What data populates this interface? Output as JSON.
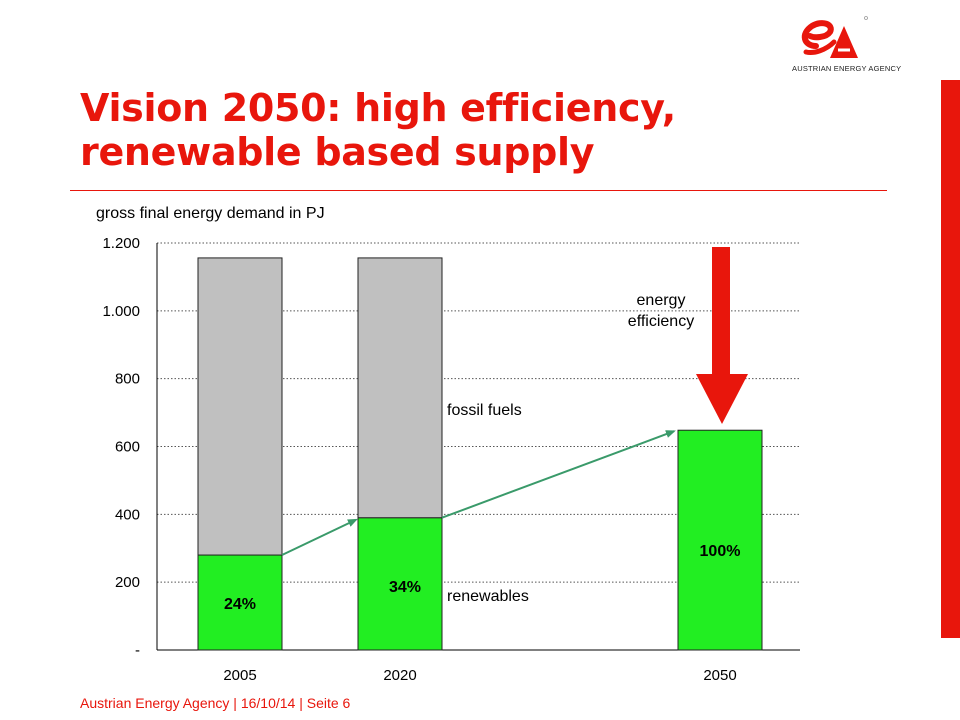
{
  "slide": {
    "title_line1": "Vision 2050: high efficiency,",
    "title_line2": "renewable based supply",
    "logo_text": "AUSTRIAN ENERGY AGENCY",
    "footer": "Austrian Energy Agency  | 16/10/14 | Seite 6"
  },
  "colors": {
    "accent": "#e8160c",
    "renewables": "#22ee22",
    "fossil": "#c0c0c0",
    "trend_arrow": "#3a9a6a"
  },
  "chart_data": {
    "type": "bar",
    "stacked": true,
    "ylabel": "gross final energy demand in PJ",
    "ylim": [
      0,
      1200
    ],
    "yticks": [
      0,
      200,
      400,
      600,
      800,
      1000,
      1200
    ],
    "ytick_labels": [
      "-",
      "200",
      "400",
      "600",
      "800",
      "1.000",
      "1.200"
    ],
    "grid": "horizontal-dotted",
    "categories": [
      "2005",
      "2020",
      "2050"
    ],
    "series": [
      {
        "name": "renewables",
        "values": [
          280,
          390,
          648
        ]
      },
      {
        "name": "fossil fuels",
        "values": [
          876,
          766,
          0
        ]
      }
    ],
    "data_labels": [
      "24%",
      "34%",
      "100%"
    ],
    "annotations": {
      "energy_efficiency": "energy\nefficiency",
      "fossil_fuels": "fossil fuels",
      "renewables": "renewables"
    }
  }
}
